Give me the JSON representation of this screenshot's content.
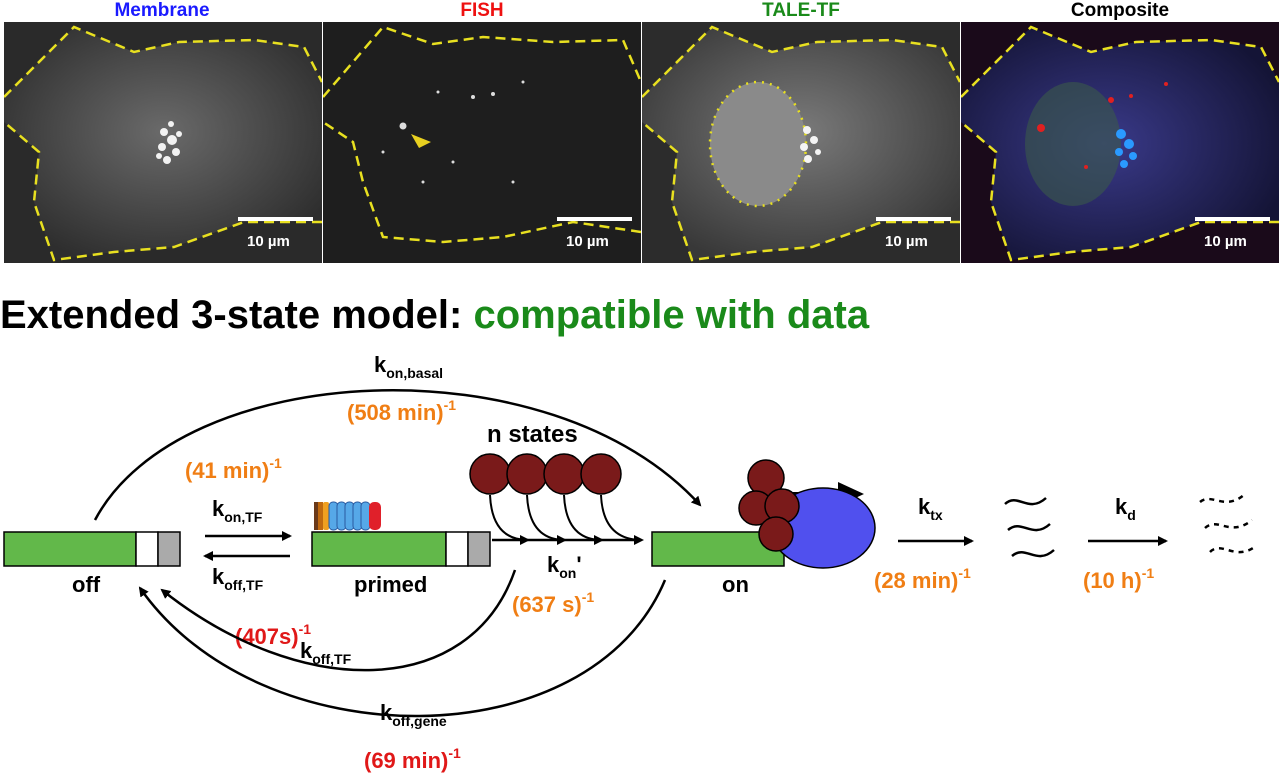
{
  "panels": [
    {
      "title": "Membrane",
      "color": "#1a1aff",
      "scale": "10 µm"
    },
    {
      "title": "FISH",
      "color": "#ee1111",
      "scale": "10 µm"
    },
    {
      "title": "TALE-TF",
      "color": "#1a8a1a",
      "scale": "10 µm"
    },
    {
      "title": "Composite",
      "color": "#000000",
      "scale": "10 µm"
    }
  ],
  "heading": {
    "part1": "Extended 3-state model:",
    "part2": "compatible with data"
  },
  "states": {
    "off": "off",
    "primed": "primed",
    "on": "on",
    "n_states": "n states"
  },
  "rates": {
    "kon_basal": {
      "k": "k",
      "sub": "on,basal",
      "value": "(508 min)",
      "exp": "-1"
    },
    "kon_tf": {
      "k": "k",
      "sub": "on,TF",
      "value": "(41 min)",
      "exp": "-1"
    },
    "koff_tf": {
      "k": "k",
      "sub": "off,TF",
      "value": "(407s)",
      "exp": "-1"
    },
    "koff_tf_long": {
      "k": "k",
      "sub": "off,TF"
    },
    "kon_prime": {
      "k": "k",
      "sub": "on",
      "sup": "'",
      "value": "(637 s)",
      "exp": "-1"
    },
    "koff_gene": {
      "k": "k",
      "sub": "off,gene",
      "value": "(69 min)",
      "exp": "-1"
    },
    "ktx": {
      "k": "k",
      "sub": "tx",
      "value": "(28 min)",
      "exp": "-1"
    },
    "kd": {
      "k": "k",
      "sub": "d",
      "value": "(10 h)",
      "exp": "-1"
    }
  },
  "colors": {
    "orange": "#f07e14",
    "red": "#e01818",
    "gene_green": "#62b84a",
    "maroon": "#7a1a1a",
    "polymerase": "#5050ee"
  }
}
